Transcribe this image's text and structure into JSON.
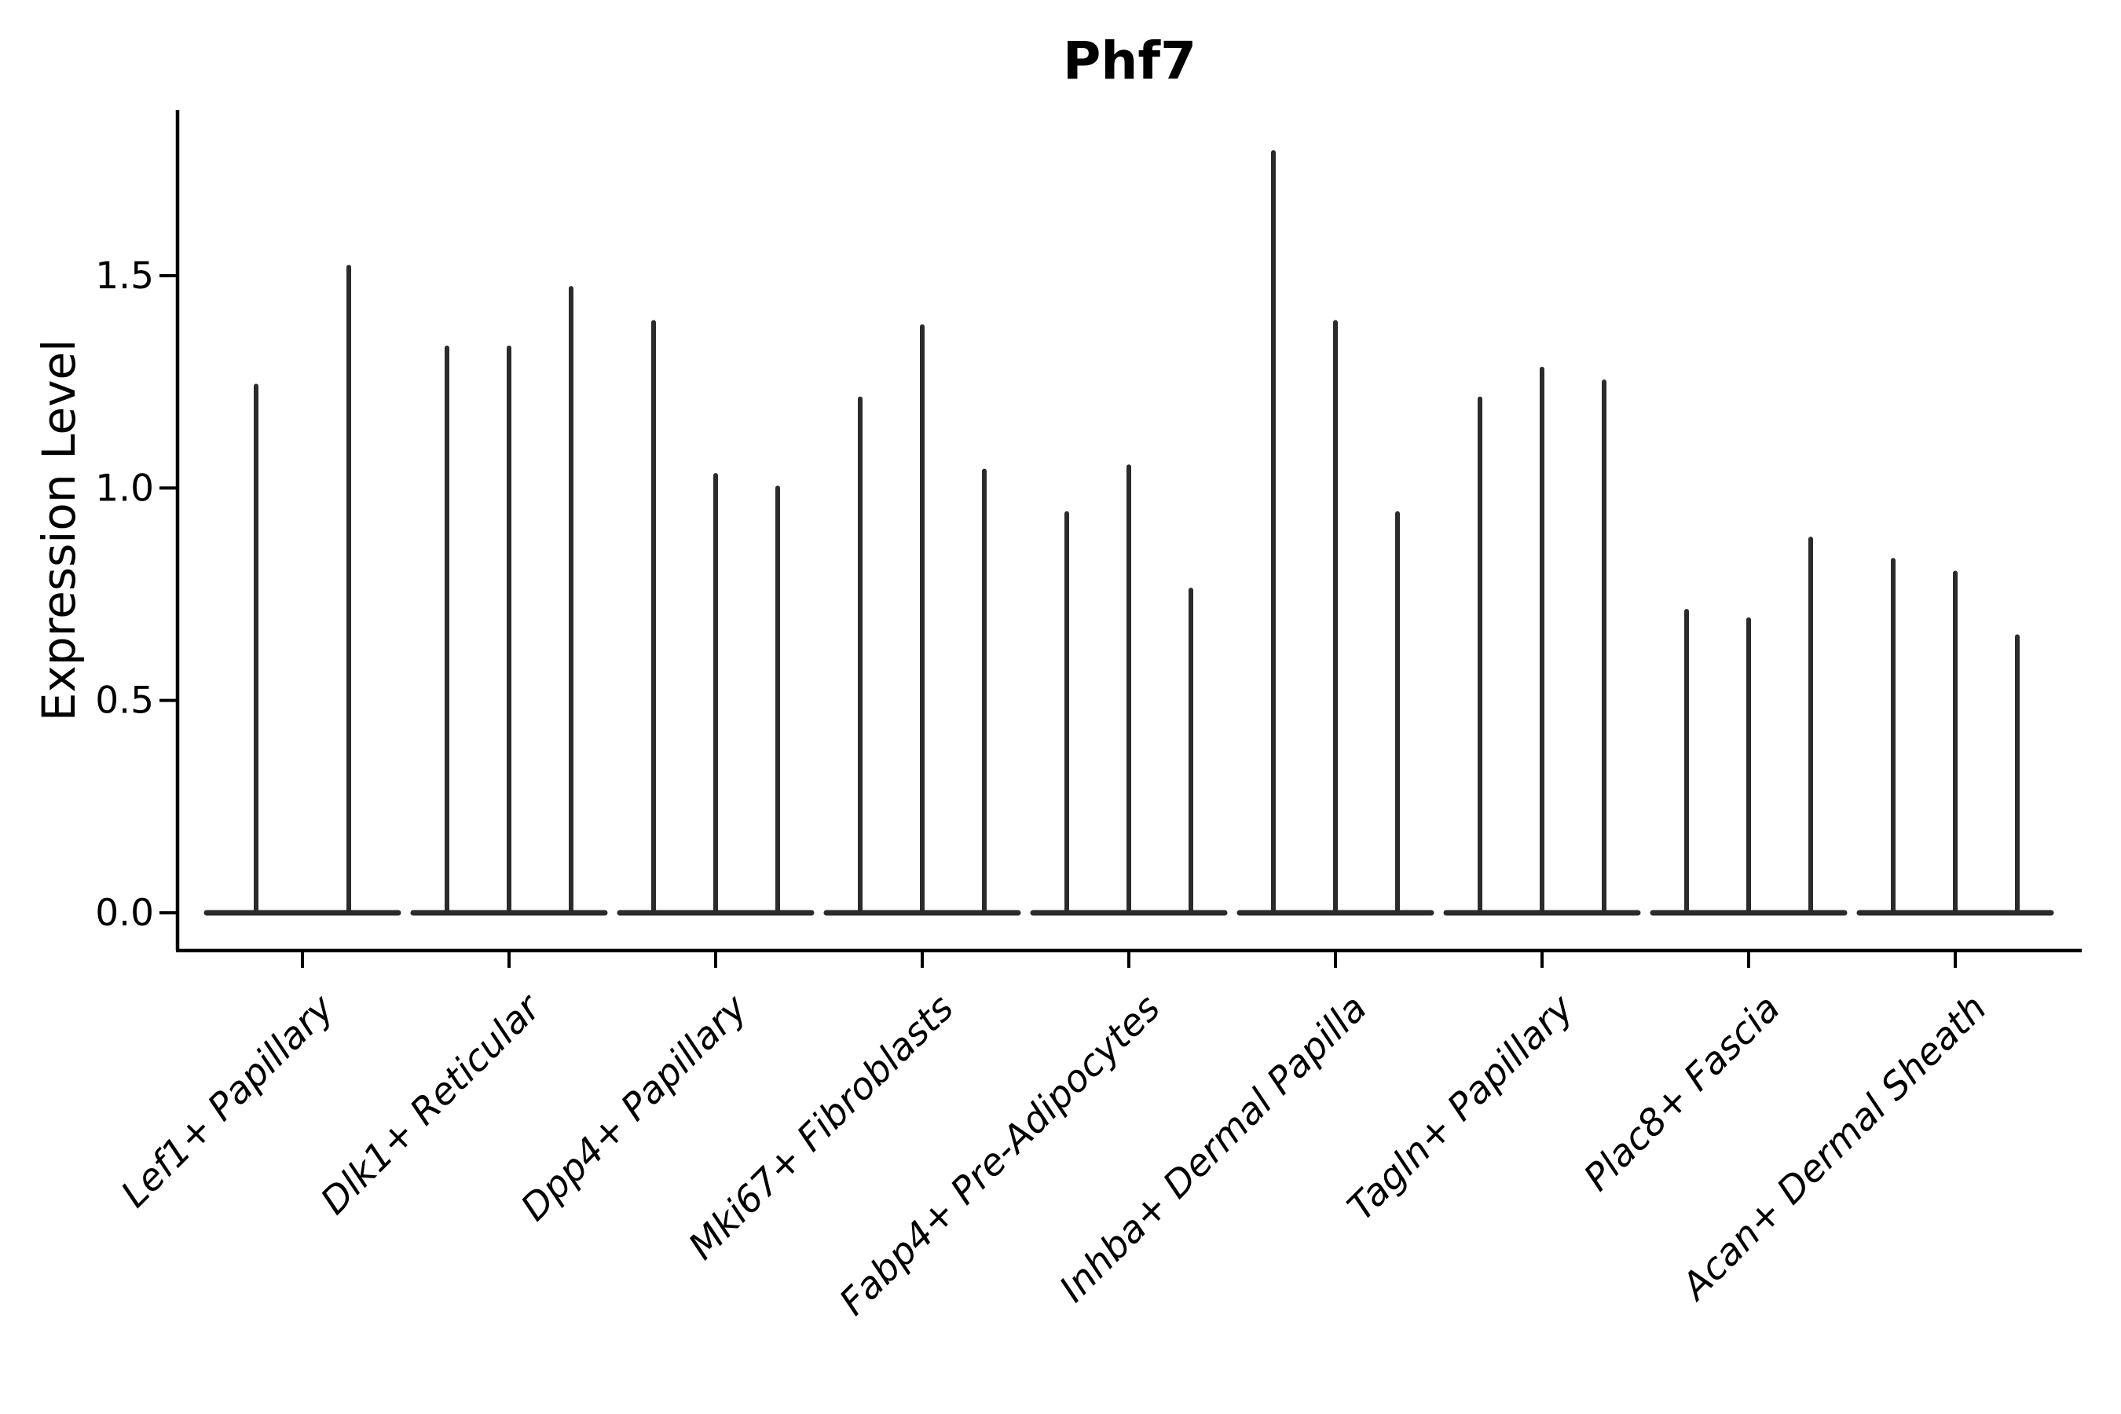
{
  "chart_data": {
    "type": "violin",
    "title": "Phf7",
    "ylabel": "Expression Level",
    "xlabel": "",
    "grid": false,
    "legend": null,
    "background": "#ffffff",
    "violin_color": "#2b2b2b",
    "axis_color": "#000000",
    "tick_label_style": "italic-rotated-45",
    "ylim": [
      -0.09,
      1.89
    ],
    "yticks": [
      0.0,
      0.5,
      1.0,
      1.5
    ],
    "ytick_labels": [
      "0.0",
      "0.5",
      "1.0",
      "1.5"
    ],
    "categories": [
      "Lef1+ Papillary",
      "Dlk1+ Reticular",
      "Dpp4+ Papillary",
      "Mki67+ Fibroblasts",
      "Fabp4+ Pre-Adipocytes",
      "Inhba+ Dermal Papilla",
      "Tagln+ Papillary",
      "Plac8+ Fascia",
      "Acan+ Dermal Sheath"
    ],
    "groups": [
      {
        "category": "Lef1+ Papillary",
        "violin_peaks": [
          1.24,
          1.52
        ]
      },
      {
        "category": "Dlk1+ Reticular",
        "violin_peaks": [
          1.33,
          1.33,
          1.47
        ]
      },
      {
        "category": "Dpp4+ Papillary",
        "violin_peaks": [
          1.39,
          1.03,
          1.0
        ]
      },
      {
        "category": "Mki67+ Fibroblasts",
        "violin_peaks": [
          1.21,
          1.38,
          1.04
        ]
      },
      {
        "category": "Fabp4+ Pre-Adipocytes",
        "violin_peaks": [
          0.94,
          1.05,
          0.76
        ]
      },
      {
        "category": "Inhba+ Dermal Papilla",
        "violin_peaks": [
          1.79,
          1.39,
          0.94
        ]
      },
      {
        "category": "Tagln+ Papillary",
        "violin_peaks": [
          1.21,
          1.28,
          1.25
        ]
      },
      {
        "category": "Plac8+ Fascia",
        "violin_peaks": [
          0.71,
          0.69,
          0.88
        ]
      },
      {
        "category": "Acan+ Dermal Sheath",
        "violin_peaks": [
          0.83,
          0.8,
          0.65
        ]
      }
    ],
    "baseline_value": 0.0,
    "description": "Needle-like violin plot of expression level per fibroblast cluster; most cells at 0 (wide flat base), thin spikes to max expression."
  }
}
